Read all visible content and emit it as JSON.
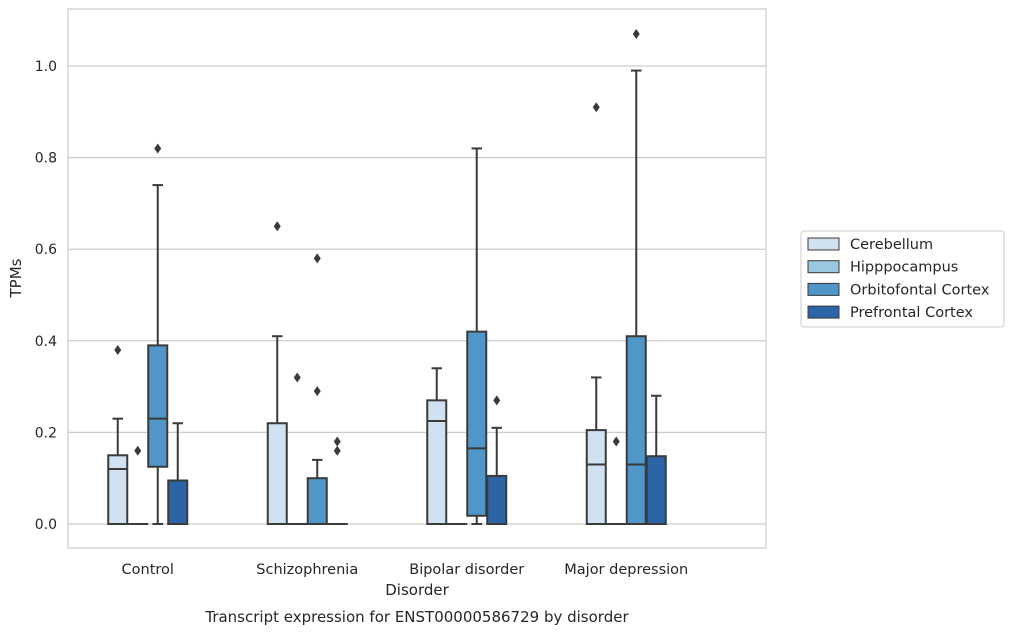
{
  "chart_data": {
    "type": "box",
    "caption": "Transcript expression for ENST00000586729 by disorder",
    "xlabel": "Disorder",
    "ylabel": "TPMs",
    "ylim": [
      -0.05,
      1.13
    ],
    "yticks": [
      0.0,
      0.2,
      0.4,
      0.6,
      0.8,
      1.0
    ],
    "ytick_labels": [
      "0.0",
      "0.2",
      "0.4",
      "0.6",
      "0.8",
      "1.0"
    ],
    "grid": "horizontal",
    "legend_position": "right",
    "categories": [
      "Control",
      "Schizophrenia",
      "Bipolar disorder",
      "Major depression"
    ],
    "series": [
      {
        "name": "Cerebellum",
        "color": "#d0e1f2",
        "boxes": [
          {
            "q1": 0.0,
            "median": 0.12,
            "q3": 0.15,
            "whisker_low": 0.0,
            "whisker_high": 0.23,
            "outliers": [
              0.38
            ]
          },
          {
            "q1": 0.0,
            "median": 0.0,
            "q3": 0.22,
            "whisker_low": 0.0,
            "whisker_high": 0.41,
            "outliers": [
              0.65
            ]
          },
          {
            "q1": 0.0,
            "median": 0.225,
            "q3": 0.27,
            "whisker_low": 0.0,
            "whisker_high": 0.34,
            "outliers": []
          },
          {
            "q1": 0.0,
            "median": 0.13,
            "q3": 0.205,
            "whisker_low": 0.0,
            "whisker_high": 0.32,
            "outliers": [
              0.91
            ]
          }
        ]
      },
      {
        "name": "Hipppocampus",
        "color": "#9ac8e0",
        "boxes": [
          {
            "q1": 0.0,
            "median": 0.0,
            "q3": 0.0,
            "whisker_low": 0.0,
            "whisker_high": 0.0,
            "outliers": [
              0.16
            ]
          },
          {
            "q1": 0.0,
            "median": 0.0,
            "q3": 0.0,
            "whisker_low": 0.0,
            "whisker_high": 0.0,
            "outliers": [
              0.32
            ]
          },
          {
            "q1": 0.0,
            "median": 0.0,
            "q3": 0.0,
            "whisker_low": 0.0,
            "whisker_high": 0.0,
            "outliers": []
          },
          {
            "q1": 0.0,
            "median": 0.0,
            "q3": 0.0,
            "whisker_low": 0.0,
            "whisker_high": 0.0,
            "outliers": [
              0.18
            ]
          }
        ]
      },
      {
        "name": "Orbitofontal Cortex",
        "color": "#5096c8",
        "boxes": [
          {
            "q1": 0.125,
            "median": 0.23,
            "q3": 0.39,
            "whisker_low": 0.0,
            "whisker_high": 0.74,
            "outliers": [
              0.82
            ]
          },
          {
            "q1": 0.0,
            "median": 0.0,
            "q3": 0.1,
            "whisker_low": 0.0,
            "whisker_high": 0.14,
            "outliers": [
              0.29,
              0.58
            ]
          },
          {
            "q1": 0.018,
            "median": 0.165,
            "q3": 0.42,
            "whisker_low": 0.0,
            "whisker_high": 0.82,
            "outliers": []
          },
          {
            "q1": 0.0,
            "median": 0.13,
            "q3": 0.41,
            "whisker_low": 0.0,
            "whisker_high": 0.99,
            "outliers": [
              1.07
            ]
          }
        ]
      },
      {
        "name": "Prefrontal Cortex",
        "color": "#2b65a6",
        "boxes": [
          {
            "q1": 0.0,
            "median": 0.0,
            "q3": 0.095,
            "whisker_low": 0.0,
            "whisker_high": 0.22,
            "outliers": []
          },
          {
            "q1": 0.0,
            "median": 0.0,
            "q3": 0.0,
            "whisker_low": 0.0,
            "whisker_high": 0.0,
            "outliers": [
              0.16,
              0.18
            ]
          },
          {
            "q1": 0.0,
            "median": 0.0,
            "q3": 0.105,
            "whisker_low": 0.0,
            "whisker_high": 0.21,
            "outliers": [
              0.27
            ]
          },
          {
            "q1": 0.0,
            "median": 0.0,
            "q3": 0.148,
            "whisker_low": 0.0,
            "whisker_high": 0.28,
            "outliers": []
          }
        ]
      }
    ]
  }
}
